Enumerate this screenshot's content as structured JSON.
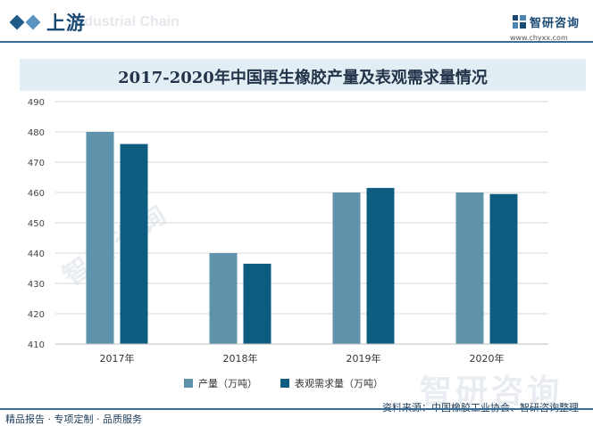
{
  "header": {
    "section_title": "上游",
    "section_subtitle": "Industrial Chain",
    "brand_name": "智研咨询",
    "brand_url": "www.chyxx.com"
  },
  "watermark_text": "智研咨询",
  "chart_data": {
    "type": "bar",
    "title": "2017-2020年中国再生橡胶产量及表观需求量情况",
    "categories": [
      "2017年",
      "2018年",
      "2019年",
      "2020年"
    ],
    "series": [
      {
        "name": "产量（万吨）",
        "color": "#5f92ab",
        "values": [
          480,
          440,
          460,
          460
        ]
      },
      {
        "name": "表观需求量（万吨）",
        "color": "#0e5c7f",
        "values": [
          476,
          436.5,
          461.5,
          459.5
        ]
      }
    ],
    "xlabel": "",
    "ylabel": "",
    "ylim": [
      410,
      490
    ],
    "yticks": [
      410,
      420,
      430,
      440,
      450,
      460,
      470,
      480,
      490
    ],
    "grid": true,
    "legend_position": "bottom"
  },
  "footer": {
    "left": "精品报告 · 专项定制 · 品质服务",
    "source": "资料来源：中国橡胶工业协会、智研咨询整理"
  }
}
